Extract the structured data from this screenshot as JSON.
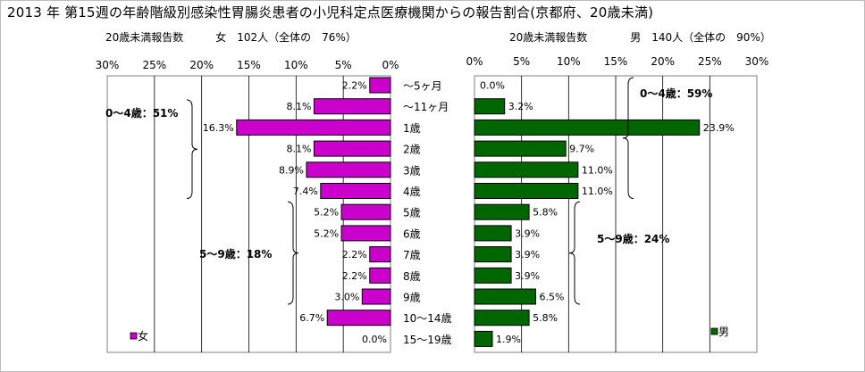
{
  "title": "2013 年 第15週の年齢階級別感染性胃腸炎患者の小児科定点医療機関からの報告割合(京都府、20歳未満)",
  "left_subtitle": "20歳未満報告数　　　女　102人（全体の　76%）",
  "right_subtitle": "20歳未満報告数　　　　男　140人（全体の　90%）",
  "chart_data": {
    "type": "bar",
    "orientation": "horizontal",
    "categories": [
      "～5ヶ月",
      "～11ヶ月",
      "1歳",
      "2歳",
      "3歳",
      "4歳",
      "5歳",
      "6歳",
      "7歳",
      "8歳",
      "9歳",
      "10～14歳",
      "15～19歳"
    ],
    "series": [
      {
        "name": "女",
        "color": "#cc00cc",
        "values": [
          2.2,
          8.1,
          16.3,
          8.1,
          8.9,
          7.4,
          5.2,
          5.2,
          2.2,
          2.2,
          3.0,
          6.7,
          0.0
        ],
        "labels": [
          "2.2%",
          "8.1%",
          "16.3%",
          "8.1%",
          "8.9%",
          "7.4%",
          "5.2%",
          "5.2%",
          "2.2%",
          "2.2%",
          "3.0%",
          "6.7%",
          "0.0%"
        ]
      },
      {
        "name": "男",
        "color": "#006600",
        "values": [
          0.0,
          3.2,
          23.9,
          9.7,
          11.0,
          11.0,
          5.8,
          3.9,
          3.9,
          3.9,
          6.5,
          5.8,
          1.9
        ],
        "labels": [
          "0.0%",
          "3.2%",
          "23.9%",
          "9.7%",
          "11.0%",
          "11.0%",
          "5.8%",
          "3.9%",
          "3.9%",
          "3.9%",
          "6.5%",
          "5.8%",
          "1.9%"
        ]
      }
    ],
    "axis_ticks": [
      "0%",
      "5%",
      "10%",
      "15%",
      "20%",
      "25%",
      "30%"
    ],
    "xlim": [
      0,
      30
    ],
    "grid": true,
    "annotations": {
      "left": [
        {
          "text": "0～4歳：51%",
          "from": 0,
          "to": 5
        },
        {
          "text": "5～9歳：18%",
          "from": 6,
          "to": 10
        }
      ],
      "right": [
        {
          "text": "0～4歳：59%",
          "from": 0,
          "to": 5
        },
        {
          "text": "5～9歳：24%",
          "from": 6,
          "to": 10
        }
      ]
    }
  }
}
